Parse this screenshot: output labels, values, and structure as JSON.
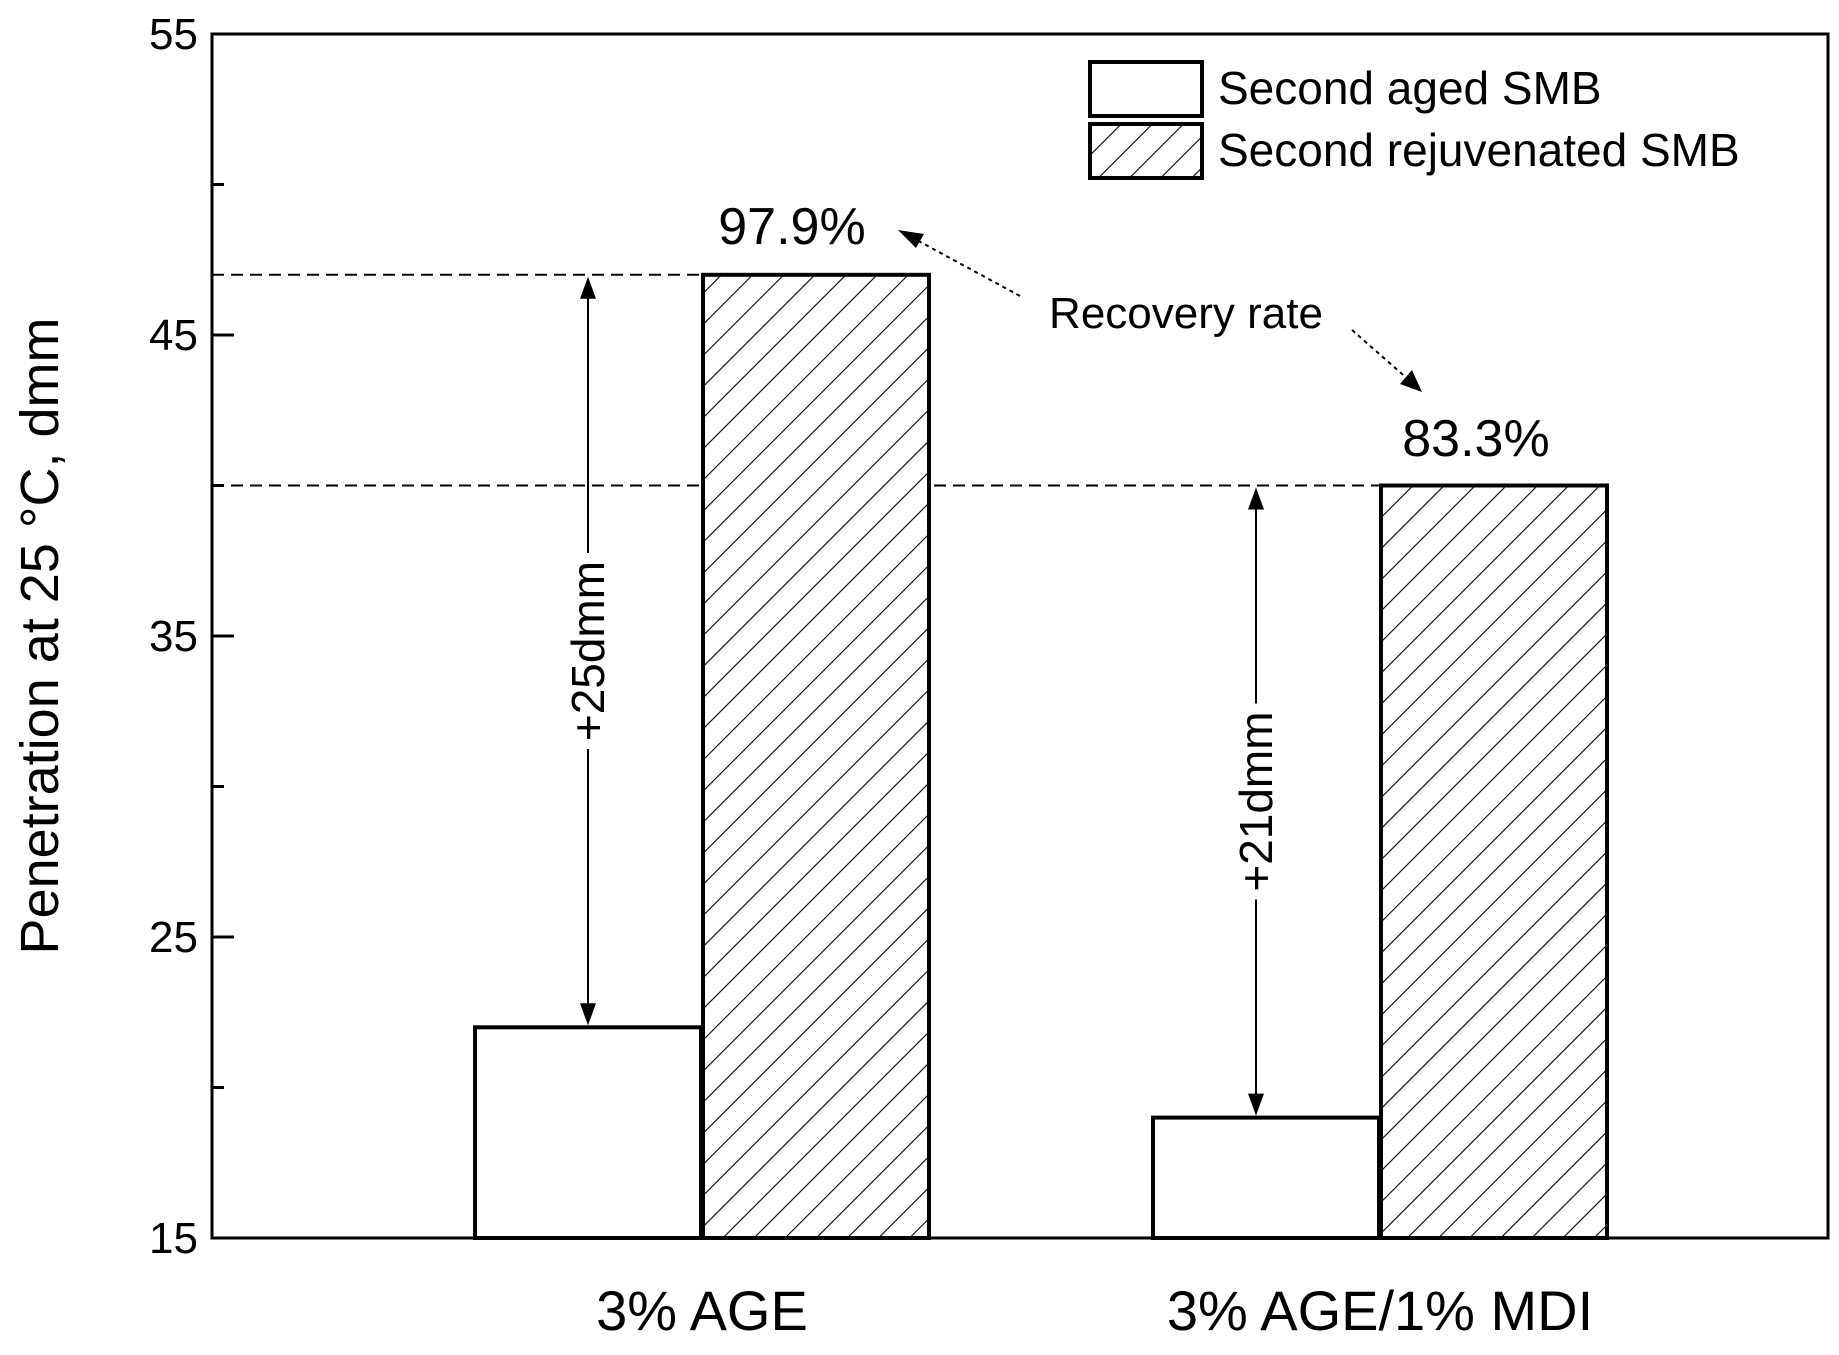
{
  "chart_data": {
    "type": "bar",
    "categories": [
      "3% AGE",
      "3% AGE/1% MDI"
    ],
    "series": [
      {
        "name": "Second aged SMB",
        "values": [
          22,
          19
        ],
        "pattern": "none"
      },
      {
        "name": "Second rejuvenated SMB",
        "values": [
          47,
          40
        ],
        "pattern": "hatch"
      }
    ],
    "ylabel": "Penetration at 25 °C, dmm",
    "xlabel": "",
    "ylim": [
      15,
      55
    ],
    "yticks": [
      15,
      25,
      35,
      45,
      55
    ],
    "legend_position": "top-right",
    "annotations": {
      "recovery_rate_label": "Recovery rate",
      "recovery_rates": [
        "97.9%",
        "83.3%"
      ],
      "differences": [
        "+25dmm",
        "+21dmm"
      ]
    },
    "colors": {
      "axis": "#000000",
      "bar_fill": "#ffffff",
      "hatch": "#000000"
    }
  }
}
